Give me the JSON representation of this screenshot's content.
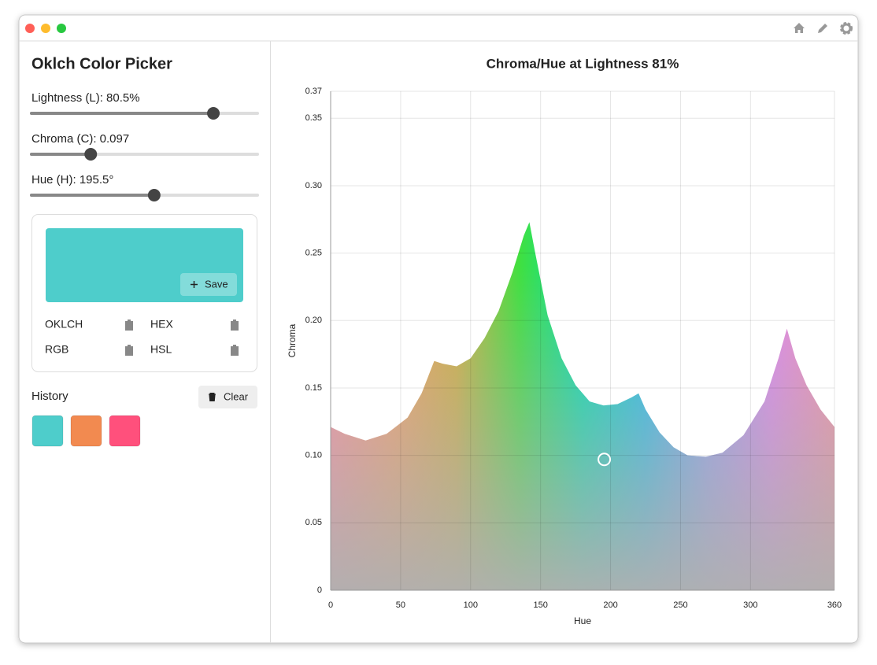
{
  "sidebar": {
    "title": "Oklch Color Picker",
    "sliders": [
      {
        "label": "Lightness (L): 80.5%",
        "value": 80.5,
        "range": [
          0,
          100
        ]
      },
      {
        "label": "Chroma (C): 0.097",
        "value": 0.097,
        "range": [
          0,
          0.37
        ]
      },
      {
        "label": "Hue (H): 195.5°",
        "value": 195.5,
        "range": [
          0,
          360
        ]
      }
    ],
    "preview": {
      "color": "#4ecdcb",
      "save_button": "Save"
    },
    "formats": [
      "OKLCH",
      "HEX",
      "RGB",
      "HSL"
    ],
    "history": {
      "title": "History",
      "clear_button": "Clear",
      "colors": [
        "#4ecdcb",
        "#f28a50",
        "#ff507c"
      ]
    }
  },
  "chart_data": {
    "type": "area",
    "title": "Chroma/Hue at Lightness 81%",
    "x_label": "Hue",
    "y_label": "Chroma",
    "x": [
      0,
      10,
      25,
      40,
      55,
      65,
      74,
      80,
      90,
      100,
      110,
      120,
      130,
      138,
      142,
      146,
      155,
      165,
      175,
      185,
      195,
      205,
      215,
      220,
      225,
      235,
      245,
      255,
      268,
      280,
      295,
      310,
      320,
      326,
      332,
      340,
      350,
      360
    ],
    "values": [
      0.121,
      0.116,
      0.111,
      0.116,
      0.128,
      0.146,
      0.17,
      0.168,
      0.166,
      0.172,
      0.187,
      0.207,
      0.236,
      0.263,
      0.273,
      0.251,
      0.204,
      0.172,
      0.152,
      0.14,
      0.137,
      0.138,
      0.143,
      0.146,
      0.134,
      0.117,
      0.106,
      0.1,
      0.099,
      0.102,
      0.115,
      0.14,
      0.172,
      0.194,
      0.172,
      0.152,
      0.134,
      0.121
    ],
    "colors": [
      "#ff90a0",
      "#f8a068",
      "#d0b040",
      "#40e040",
      "#00e0b0",
      "#20c0f0",
      "#90a0f8",
      "#e088f0",
      "#f890a8"
    ],
    "xlim": [
      0,
      360
    ],
    "xticks": [
      0,
      50,
      100,
      150,
      200,
      250,
      300,
      360
    ],
    "ylim": [
      0,
      0.37
    ],
    "yticks": [
      0,
      0.05,
      {
        "value": 0.1,
        "label": "0.10"
      },
      0.15,
      {
        "value": 0.2,
        "label": "0.20"
      },
      0.25,
      {
        "value": 0.3,
        "label": "0.30"
      },
      0.35,
      0.37
    ],
    "grid": true
  }
}
